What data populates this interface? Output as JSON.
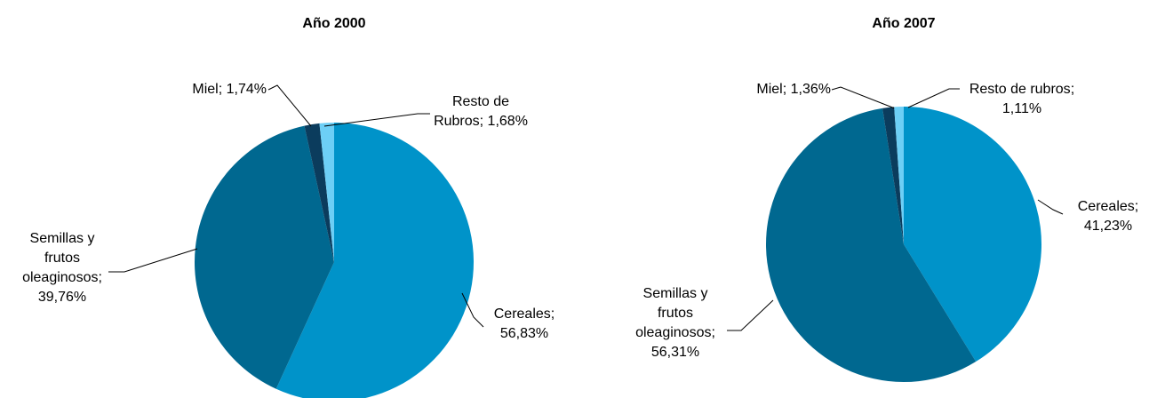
{
  "chart_data": [
    {
      "type": "pie",
      "title": "Año 2000",
      "label_separator": ";",
      "categories": [
        "Cereales",
        "Semillas y frutos oleaginosos",
        "Miel",
        "Resto de Rubros"
      ],
      "values": [
        56.83,
        39.76,
        1.74,
        1.68
      ],
      "value_labels": [
        "56,83%",
        "39,76%",
        "1,74%",
        "1,68%"
      ],
      "colors": [
        "#0093c9",
        "#006890",
        "#0b3c5d",
        "#6dcff6"
      ]
    },
    {
      "type": "pie",
      "title": "Año 2007",
      "label_separator": ";",
      "categories": [
        "Cereales",
        "Semillas y frutos oleaginosos",
        "Miel",
        "Resto de rubros"
      ],
      "values": [
        41.23,
        56.31,
        1.36,
        1.11
      ],
      "value_labels": [
        "41,23%",
        "56,31%",
        "1,36%",
        "1,11%"
      ],
      "colors": [
        "#0093c9",
        "#006890",
        "#0b3c5d",
        "#6dcff6"
      ]
    }
  ]
}
